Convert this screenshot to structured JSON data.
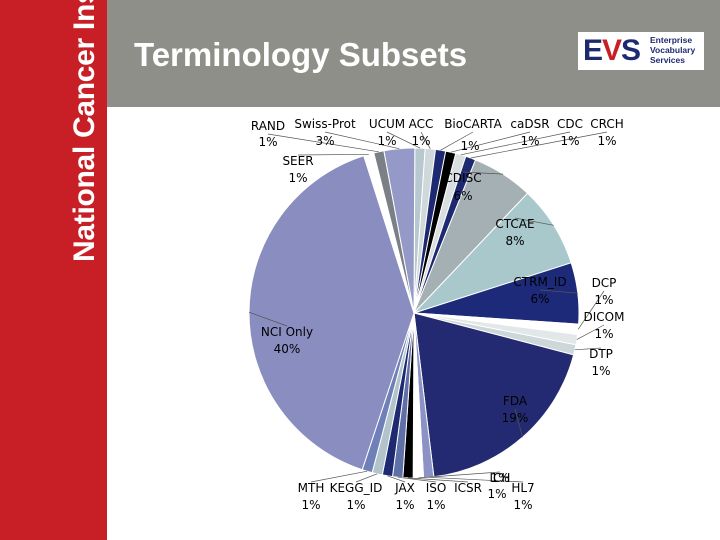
{
  "sidebar": {
    "text": "National Cancer Institute"
  },
  "header": {
    "title": "Terminology Subsets"
  },
  "logo": {
    "letters_e": "E",
    "letters_v": "V",
    "letters_s": "S",
    "line1": "Enterprise",
    "line2": "Vocabulary",
    "line3": "Services"
  },
  "chart_data": {
    "type": "pie",
    "title": "",
    "slices": [
      {
        "name": "UCUM",
        "label": "1%",
        "value": 1,
        "color": "#b8c8cf"
      },
      {
        "name": "ACC",
        "label": "1%",
        "value": 1,
        "color": "#cfd8da"
      },
      {
        "name": "BioCARTA",
        "label": "1%",
        "value": 1,
        "color": "#1d2970"
      },
      {
        "name": "caDSR",
        "label": "1%",
        "value": 1,
        "color": "#000000"
      },
      {
        "name": "CDC",
        "label": "1%",
        "value": 1,
        "color": "#d9dfe0"
      },
      {
        "name": "CRCH",
        "label": "1%",
        "value": 1,
        "color": "#1d2970"
      },
      {
        "name": "CDISC",
        "label": "6%",
        "value": 6,
        "color": "#a4b0b4"
      },
      {
        "name": "CTCAE",
        "label": "8%",
        "value": 8,
        "color": "#a9c8cc"
      },
      {
        "name": "CTRM_ID",
        "label": "6%",
        "value": 6,
        "color": "#1d2a7a"
      },
      {
        "name": "DCP",
        "label": "1%",
        "value": 1,
        "color": "#ffffff"
      },
      {
        "name": "DICOM",
        "label": "1%",
        "value": 1,
        "color": "#e2e7e8"
      },
      {
        "name": "DTP",
        "label": "1%",
        "value": 1,
        "color": "#cdd6d8"
      },
      {
        "name": "FDA",
        "label": "19%",
        "value": 19,
        "color": "#232a72"
      },
      {
        "name": "HL7",
        "label": "1%",
        "value": 1,
        "color": "#8d92c6"
      },
      {
        "name": "ICH",
        "label": "1%",
        "value": 1,
        "color": "#ffffff"
      },
      {
        "name": "ICSR",
        "label": "1%",
        "value": 1,
        "color": "#000000"
      },
      {
        "name": "ISO",
        "label": "1%",
        "value": 1,
        "color": "#5f6fa8"
      },
      {
        "name": "JAX",
        "label": "1%",
        "value": 1,
        "color": "#1d2970"
      },
      {
        "name": "KEGG_ID",
        "label": "1%",
        "value": 1,
        "color": "#b3c3cb"
      },
      {
        "name": "MTH",
        "label": "1%",
        "value": 1,
        "color": "#6f7fb8"
      },
      {
        "name": "NCI Only",
        "label": "40%",
        "value": 40,
        "color": "#8a8dc0"
      },
      {
        "name": "SEER",
        "label": "1%",
        "value": 1,
        "color": "#ffffff"
      },
      {
        "name": "RAND",
        "label": "1%",
        "value": 1,
        "color": "#7b7f86"
      },
      {
        "name": "Swiss-Prot",
        "label": "3%",
        "value": 3,
        "color": "#9599c8"
      }
    ]
  }
}
